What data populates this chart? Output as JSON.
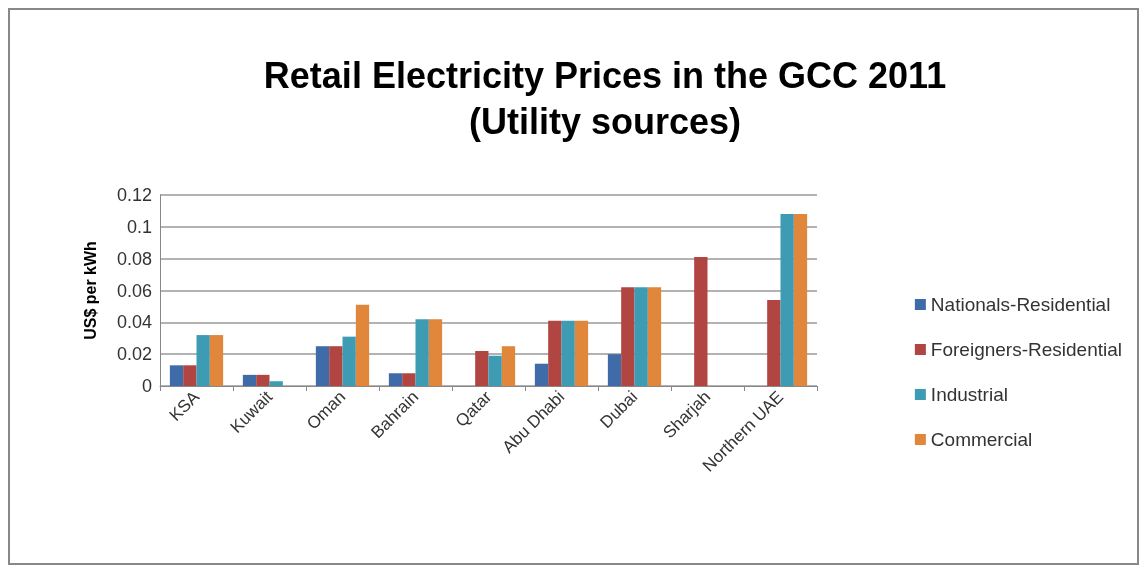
{
  "chart_data": {
    "type": "bar",
    "title": "Retail Electricity Prices in the GCC 2011",
    "subtitle": "(Utility sources)",
    "ylabel": "US$ per kWh",
    "categories": [
      "KSA",
      "Kuwait",
      "Oman",
      "Bahrain",
      "Qatar",
      "Abu Dhabi",
      "Dubai",
      "Sharjah",
      "Northern UAE"
    ],
    "series": [
      {
        "name": "Nationals-Residential",
        "color": "#3f6ca8",
        "values": [
          0.013,
          0.007,
          0.025,
          0.008,
          null,
          0.014,
          0.02,
          null,
          null
        ]
      },
      {
        "name": "Foreigners-Residential",
        "color": "#b04542",
        "values": [
          0.013,
          0.007,
          0.025,
          0.008,
          0.022,
          0.041,
          0.062,
          0.081,
          0.054
        ]
      },
      {
        "name": "Industrial",
        "color": "#3e9bb4",
        "values": [
          0.032,
          0.003,
          0.031,
          0.042,
          0.019,
          0.041,
          0.062,
          null,
          0.108
        ]
      },
      {
        "name": "Commercial",
        "color": "#e0873c",
        "values": [
          0.032,
          null,
          0.051,
          0.042,
          0.025,
          0.041,
          0.062,
          null,
          0.108
        ]
      }
    ],
    "ylim": [
      0,
      0.12
    ],
    "yticks": [
      0,
      0.02,
      0.04,
      0.06,
      0.08,
      0.1,
      0.12
    ],
    "grid": "y",
    "legend": "right"
  }
}
